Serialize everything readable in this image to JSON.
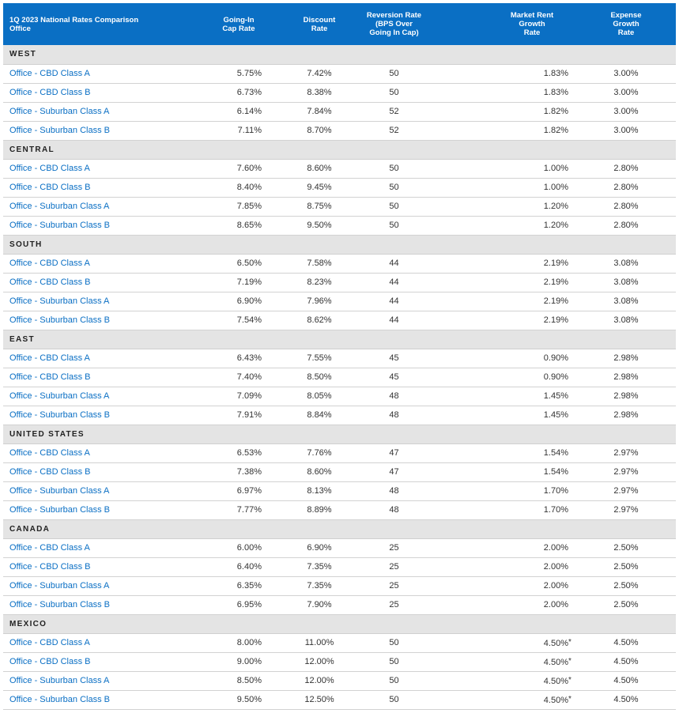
{
  "header": {
    "title": "1Q 2023 National Rates Comparison",
    "subtitle": "Office",
    "columns": [
      [
        "Going-In",
        "Cap Rate"
      ],
      [
        "Discount",
        "Rate"
      ],
      [
        "Reversion Rate",
        "(BPS Over",
        "Going In Cap)"
      ],
      [
        "Market Rent",
        "Growth",
        "Rate"
      ],
      [
        "Expense",
        "Growth",
        "Rate"
      ]
    ]
  },
  "sections": [
    {
      "name": "WEST",
      "rows": [
        {
          "label": "Office - CBD Class A",
          "cap": "5.75%",
          "disc": "7.42%",
          "rev": "50",
          "rent": "1.83%",
          "note": "",
          "exp": "3.00%"
        },
        {
          "label": "Office - CBD Class B",
          "cap": "6.73%",
          "disc": "8.38%",
          "rev": "50",
          "rent": "1.83%",
          "note": "",
          "exp": "3.00%"
        },
        {
          "label": "Office - Suburban Class A",
          "cap": "6.14%",
          "disc": "7.84%",
          "rev": "52",
          "rent": "1.82%",
          "note": "",
          "exp": "3.00%"
        },
        {
          "label": "Office - Suburban Class B",
          "cap": "7.11%",
          "disc": "8.70%",
          "rev": "52",
          "rent": "1.82%",
          "note": "",
          "exp": "3.00%"
        }
      ]
    },
    {
      "name": "CENTRAL",
      "rows": [
        {
          "label": "Office - CBD Class A",
          "cap": "7.60%",
          "disc": "8.60%",
          "rev": "50",
          "rent": "1.00%",
          "note": "",
          "exp": "2.80%"
        },
        {
          "label": "Office - CBD Class B",
          "cap": "8.40%",
          "disc": "9.45%",
          "rev": "50",
          "rent": "1.00%",
          "note": "",
          "exp": "2.80%"
        },
        {
          "label": "Office - Suburban Class A",
          "cap": "7.85%",
          "disc": "8.75%",
          "rev": "50",
          "rent": "1.20%",
          "note": "",
          "exp": "2.80%"
        },
        {
          "label": "Office - Suburban Class B",
          "cap": "8.65%",
          "disc": "9.50%",
          "rev": "50",
          "rent": "1.20%",
          "note": "",
          "exp": "2.80%"
        }
      ]
    },
    {
      "name": "SOUTH",
      "rows": [
        {
          "label": "Office - CBD Class A",
          "cap": "6.50%",
          "disc": "7.58%",
          "rev": "44",
          "rent": "2.19%",
          "note": "",
          "exp": "3.08%"
        },
        {
          "label": "Office - CBD Class B",
          "cap": "7.19%",
          "disc": "8.23%",
          "rev": "44",
          "rent": "2.19%",
          "note": "",
          "exp": "3.08%"
        },
        {
          "label": "Office - Suburban Class A",
          "cap": "6.90%",
          "disc": "7.96%",
          "rev": "44",
          "rent": "2.19%",
          "note": "",
          "exp": "3.08%"
        },
        {
          "label": "Office - Suburban Class B",
          "cap": "7.54%",
          "disc": "8.62%",
          "rev": "44",
          "rent": "2.19%",
          "note": "",
          "exp": "3.08%"
        }
      ]
    },
    {
      "name": "EAST",
      "rows": [
        {
          "label": "Office - CBD Class A",
          "cap": "6.43%",
          "disc": "7.55%",
          "rev": "45",
          "rent": "0.90%",
          "note": "",
          "exp": "2.98%"
        },
        {
          "label": "Office - CBD Class B",
          "cap": "7.40%",
          "disc": "8.50%",
          "rev": "45",
          "rent": "0.90%",
          "note": "",
          "exp": "2.98%"
        },
        {
          "label": "Office - Suburban Class A",
          "cap": "7.09%",
          "disc": "8.05%",
          "rev": "48",
          "rent": "1.45%",
          "note": "",
          "exp": "2.98%"
        },
        {
          "label": "Office - Suburban Class B",
          "cap": "7.91%",
          "disc": "8.84%",
          "rev": "48",
          "rent": "1.45%",
          "note": "",
          "exp": "2.98%"
        }
      ]
    },
    {
      "name": "UNITED STATES",
      "rows": [
        {
          "label": "Office - CBD Class A",
          "cap": "6.53%",
          "disc": "7.76%",
          "rev": "47",
          "rent": "1.54%",
          "note": "",
          "exp": "2.97%"
        },
        {
          "label": "Office - CBD Class B",
          "cap": "7.38%",
          "disc": "8.60%",
          "rev": "47",
          "rent": "1.54%",
          "note": "",
          "exp": "2.97%"
        },
        {
          "label": "Office - Suburban Class A",
          "cap": "6.97%",
          "disc": "8.13%",
          "rev": "48",
          "rent": "1.70%",
          "note": "",
          "exp": "2.97%"
        },
        {
          "label": "Office - Suburban Class B",
          "cap": "7.77%",
          "disc": "8.89%",
          "rev": "48",
          "rent": "1.70%",
          "note": "",
          "exp": "2.97%"
        }
      ]
    },
    {
      "name": "CANADA",
      "rows": [
        {
          "label": "Office - CBD Class A",
          "cap": "6.00%",
          "disc": "6.90%",
          "rev": "25",
          "rent": "2.00%",
          "note": "",
          "exp": "2.50%"
        },
        {
          "label": "Office - CBD Class B",
          "cap": "6.40%",
          "disc": "7.35%",
          "rev": "25",
          "rent": "2.00%",
          "note": "",
          "exp": "2.50%"
        },
        {
          "label": "Office - Suburban Class A",
          "cap": "6.35%",
          "disc": "7.35%",
          "rev": "25",
          "rent": "2.00%",
          "note": "",
          "exp": "2.50%"
        },
        {
          "label": "Office - Suburban Class B",
          "cap": "6.95%",
          "disc": "7.90%",
          "rev": "25",
          "rent": "2.00%",
          "note": "",
          "exp": "2.50%"
        }
      ]
    },
    {
      "name": "MEXICO",
      "rows": [
        {
          "label": "Office - CBD Class A",
          "cap": "8.00%",
          "disc": "11.00%",
          "rev": "50",
          "rent": "4.50%",
          "note": "*",
          "exp": "4.50%"
        },
        {
          "label": "Office - CBD Class B",
          "cap": "9.00%",
          "disc": "12.00%",
          "rev": "50",
          "rent": "4.50%",
          "note": "*",
          "exp": "4.50%"
        },
        {
          "label": "Office - Suburban Class A",
          "cap": "8.50%",
          "disc": "12.00%",
          "rev": "50",
          "rent": "4.50%",
          "note": "*",
          "exp": "4.50%"
        },
        {
          "label": "Office - Suburban Class B",
          "cap": "9.50%",
          "disc": "12.50%",
          "rev": "50",
          "rent": "4.50%",
          "note": "*",
          "exp": "4.50%"
        }
      ]
    }
  ],
  "colors": {
    "header_bg": "#0a6fc4",
    "label_text": "#0a6fc4",
    "section_bg": "#e4e4e4"
  }
}
